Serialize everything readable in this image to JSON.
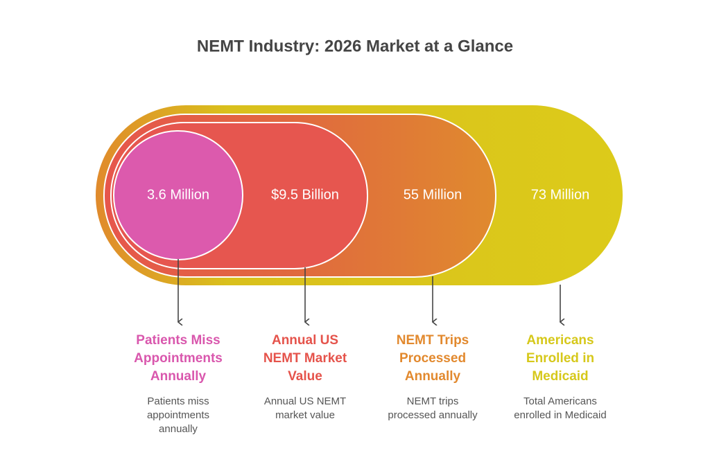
{
  "title": "NEMT Industry: 2026 Market at a Glance",
  "items": [
    {
      "value": "3.6 Million",
      "heading": [
        "Patients Miss",
        "Appointments",
        "Annually"
      ],
      "description": [
        "Patients miss",
        "appointments",
        "annually"
      ]
    },
    {
      "value": "$9.5 Billion",
      "heading": [
        "Annual US",
        "NEMT Market",
        "Value"
      ],
      "description": [
        "Annual US NEMT",
        "market value"
      ]
    },
    {
      "value": "55 Million",
      "heading": [
        "NEMT Trips",
        "Processed",
        "Annually"
      ],
      "description": [
        "NEMT trips",
        "processed annually"
      ]
    },
    {
      "value": "73 Million",
      "heading": [
        "Americans",
        "Enrolled in",
        "Medicaid"
      ],
      "description": [
        "Total Americans",
        "enrolled in Medicaid"
      ]
    }
  ]
}
